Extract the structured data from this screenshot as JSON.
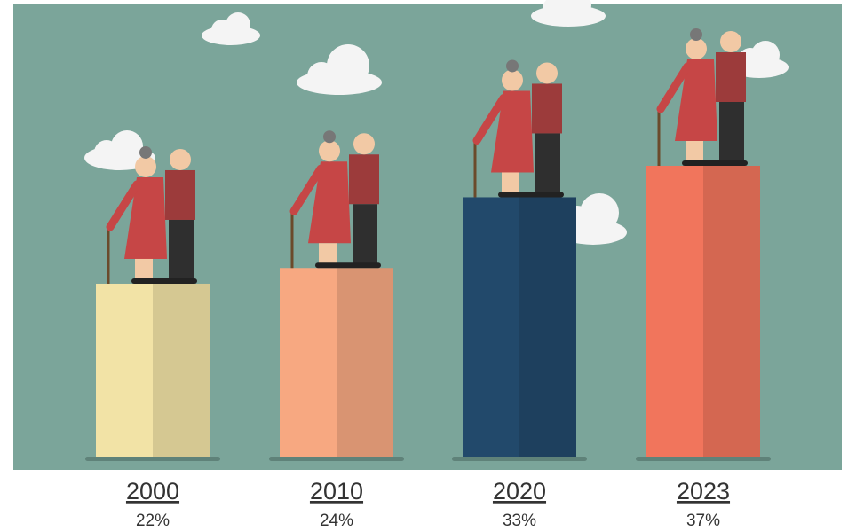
{
  "chart_data": {
    "type": "bar",
    "categories": [
      "2000",
      "2010",
      "2020",
      "2023"
    ],
    "values": [
      22,
      24,
      33,
      37
    ],
    "value_labels": [
      "22%",
      "24%",
      "33%",
      "37%"
    ],
    "colors": [
      "#f2e3a6",
      "#f7a881",
      "#22496b",
      "#f1755c"
    ]
  }
}
